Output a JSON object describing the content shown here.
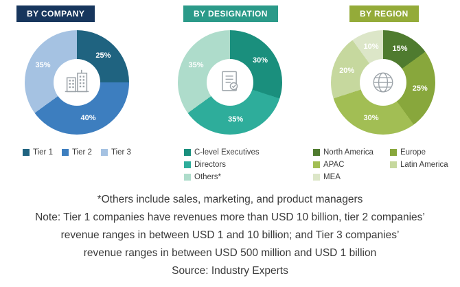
{
  "chart_data": [
    {
      "type": "donut",
      "title": "BY COMPANY",
      "header_color": "#17365D",
      "icon": "buildings-icon",
      "labels": [
        "Tier 1",
        "Tier 2",
        "Tier 3"
      ],
      "values": [
        25,
        40,
        35
      ],
      "unit": "%",
      "colors": [
        "#1F6380",
        "#3D7EBF",
        "#A5C2E2"
      ],
      "legend_position": "bottom"
    },
    {
      "type": "donut",
      "title": "BY DESIGNATION",
      "header_color": "#2B9A89",
      "icon": "certificate-icon",
      "labels": [
        "C-level Executives",
        "Directors",
        "Others*"
      ],
      "values": [
        30,
        35,
        35
      ],
      "unit": "%",
      "colors": [
        "#1A8F7D",
        "#2EAD9B",
        "#AEDCCB"
      ],
      "legend_position": "bottom"
    },
    {
      "type": "donut",
      "title": "BY REGION",
      "header_color": "#94AB39",
      "icon": "globe-icon",
      "labels": [
        "North America",
        "Europe",
        "APAC",
        "Latin America",
        "MEA"
      ],
      "values": [
        15,
        25,
        30,
        20,
        10
      ],
      "unit": "%",
      "colors": [
        "#4F7B2F",
        "#88A73C",
        "#A2BE54",
        "#C6D89E",
        "#DCE6C8"
      ],
      "legend_position": "bottom"
    }
  ],
  "footnote": "*Others include sales, marketing, and product managers",
  "note_lines": [
    "Note: Tier 1 companies have revenues more than USD 10 billion, tier 2 companies’",
    "revenue ranges in between USD 1 and 10 billion; and Tier 3 companies’",
    "revenue ranges in between USD 500 million and USD 1 billion"
  ],
  "source": "Source: Industry Experts"
}
